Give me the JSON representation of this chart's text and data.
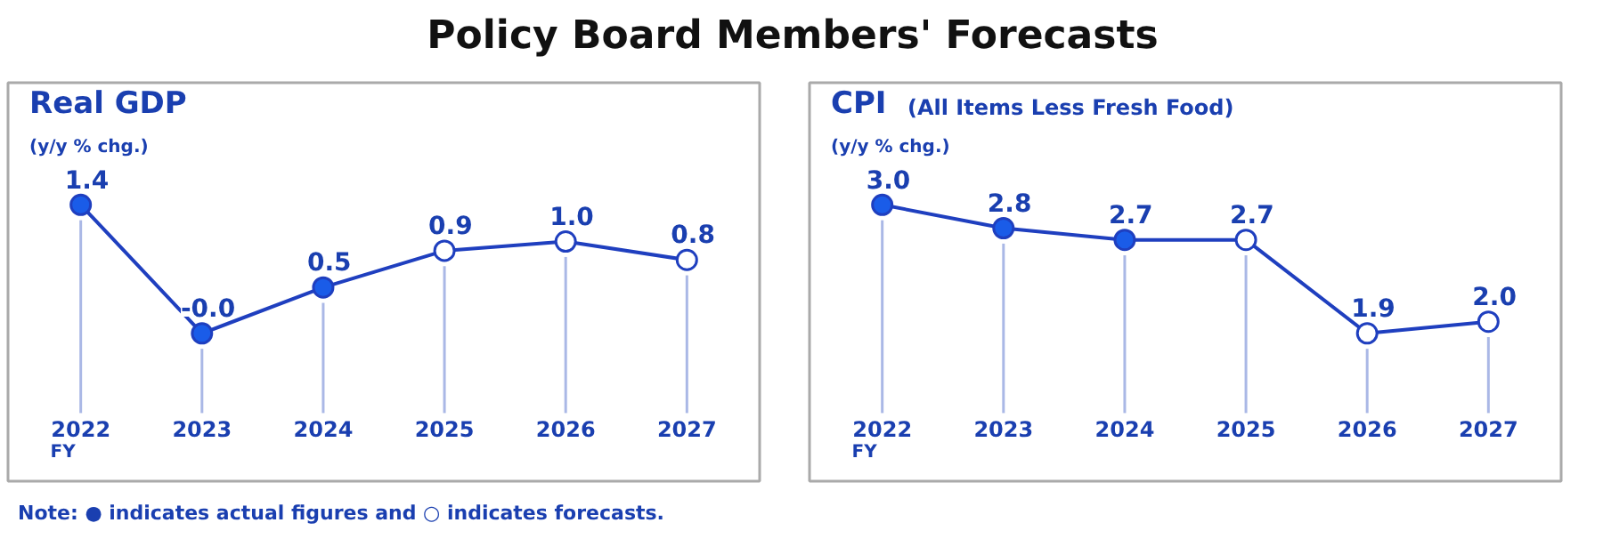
{
  "chart_data": [
    {
      "type": "line",
      "title": "Real GDP",
      "ylabel": "(y/y % chg.)",
      "xlabel": "FY",
      "annotations": [
        "Policy Board Members' Forecasts",
        "Note: ● indicates actual figures and ○ indicates forecasts."
      ],
      "categories": [
        "2022",
        "2023",
        "2024",
        "2025",
        "2026",
        "2027"
      ],
      "series": [
        {
          "color": "#1f3fbf",
          "values": [
            1.4,
            -0.0,
            0.5,
            0.9,
            1.0,
            0.8
          ],
          "colors": [
            "#1a5ce8",
            "#1a5ce8",
            "#1a5ce8",
            "#ffffff",
            "#ffffff",
            "#ffffff"
          ],
          "value_labels": [
            "1.4",
            "-0.0",
            "0.5",
            "0.9",
            "1.0",
            "0.8"
          ]
        }
      ],
      "marker": "circle",
      "grid": "x"
    },
    {
      "type": "line",
      "title": "CPI",
      "subtitle": "(All Items Less Fresh Food)",
      "ylabel": "(y/y % chg.)",
      "xlabel": "FY",
      "categories": [
        "2022",
        "2023",
        "2024",
        "2025",
        "2026",
        "2027"
      ],
      "series": [
        {
          "color": "#1f3fbf",
          "values": [
            3.0,
            2.8,
            2.7,
            2.7,
            1.9,
            2.0
          ],
          "colors": [
            "#1a5ce8",
            "#1a5ce8",
            "#1a5ce8",
            "#ffffff",
            "#ffffff",
            "#ffffff"
          ],
          "value_labels": [
            "3.0",
            "2.8",
            "2.7",
            "2.7",
            "1.9",
            "2.0"
          ]
        }
      ],
      "marker": "circle",
      "grid": "x"
    }
  ]
}
